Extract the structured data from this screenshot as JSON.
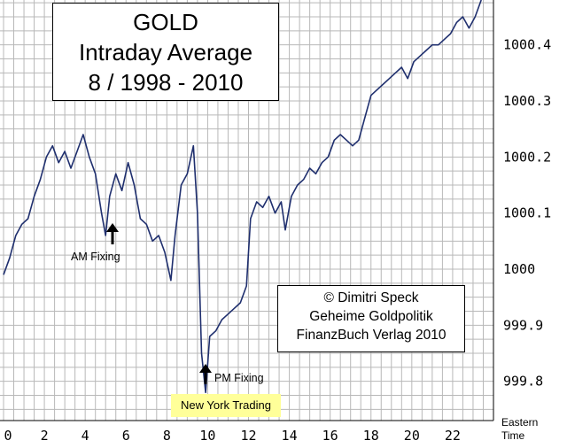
{
  "title_box": {
    "line1": "GOLD",
    "line2": "Intraday Average",
    "line3": "8 / 1998 - 2010"
  },
  "credit_box": {
    "line1": "© Dimitri Speck",
    "line2": "Geheime Goldpolitik",
    "line3": "FinanzBuch Verlag 2010"
  },
  "annotations": {
    "am_fixing": "AM Fixing",
    "pm_fixing": "PM Fixing",
    "ny_trading": "New York Trading"
  },
  "x_axis_title": {
    "line1": "Eastern",
    "line2": "Time"
  },
  "colors": {
    "line": "#1f2f6e",
    "grid": "#b8b8b8",
    "highlight": "#ffff99"
  },
  "chart_data": {
    "type": "line",
    "x_ticks": [
      "0",
      "2",
      "4",
      "6",
      "8",
      "10",
      "12",
      "14",
      "16",
      "18",
      "20",
      "22"
    ],
    "y_ticks": [
      "999.8",
      "999.9",
      "1000",
      "1000.1",
      "1000.2",
      "1000.3",
      "1000.4"
    ],
    "xlim": [
      0,
      24
    ],
    "ylim": [
      999.73,
      1000.48
    ],
    "grid": true,
    "series": [
      {
        "x": [
          0,
          0.3,
          0.6,
          0.9,
          1.2,
          1.5,
          1.8,
          2.1,
          2.4,
          2.7,
          3.0,
          3.3,
          3.6,
          3.9,
          4.2,
          4.5,
          4.8,
          5.0,
          5.2,
          5.5,
          5.8,
          6.1,
          6.4,
          6.7,
          7.0,
          7.3,
          7.6,
          7.9,
          8.2,
          8.4,
          8.7,
          9.0,
          9.3,
          9.5,
          9.7,
          9.9,
          10.1,
          10.4,
          10.7,
          11.0,
          11.3,
          11.6,
          11.9,
          12.1,
          12.4,
          12.7,
          13.0,
          13.3,
          13.6,
          13.8,
          14.1,
          14.4,
          14.7,
          15.0,
          15.3,
          15.6,
          15.9,
          16.2,
          16.5,
          16.8,
          17.1,
          17.4,
          17.7,
          18.0,
          18.3,
          18.6,
          18.9,
          19.2,
          19.5,
          19.8,
          20.1,
          20.4,
          20.7,
          21.0,
          21.3,
          21.6,
          21.9,
          22.2,
          22.5,
          22.8,
          23.1,
          23.4
        ],
        "y": [
          999.99,
          1000.02,
          1000.06,
          1000.08,
          1000.09,
          1000.13,
          1000.16,
          1000.2,
          1000.22,
          1000.19,
          1000.21,
          1000.18,
          1000.21,
          1000.24,
          1000.2,
          1000.17,
          1000.1,
          1000.06,
          1000.13,
          1000.17,
          1000.14,
          1000.19,
          1000.15,
          1000.09,
          1000.08,
          1000.05,
          1000.06,
          1000.03,
          999.98,
          1000.06,
          1000.15,
          1000.17,
          1000.22,
          1000.1,
          999.85,
          999.78,
          999.88,
          999.89,
          999.91,
          999.92,
          999.93,
          999.94,
          999.97,
          1000.09,
          1000.12,
          1000.11,
          1000.13,
          1000.1,
          1000.12,
          1000.07,
          1000.13,
          1000.15,
          1000.16,
          1000.18,
          1000.17,
          1000.19,
          1000.2,
          1000.23,
          1000.24,
          1000.23,
          1000.22,
          1000.23,
          1000.27,
          1000.31,
          1000.32,
          1000.33,
          1000.34,
          1000.35,
          1000.36,
          1000.34,
          1000.37,
          1000.38,
          1000.39,
          1000.4,
          1000.4,
          1000.41,
          1000.42,
          1000.44,
          1000.45,
          1000.43,
          1000.45,
          1000.48
        ]
      }
    ]
  }
}
